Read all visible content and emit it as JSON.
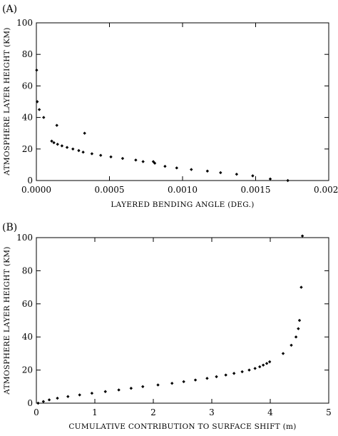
{
  "chart_data": [
    {
      "type": "scatter",
      "panel_label": "(A)",
      "title": "",
      "xlabel": "LAYERED BENDING ANGLE (DEG.)",
      "ylabel": "ATMOSPHERE LAYER HEIGHT (KM)",
      "xlim": [
        0,
        0.002
      ],
      "ylim": [
        0,
        100
      ],
      "xticks": [
        0,
        0.0005,
        0.001,
        0.0015,
        0.002
      ],
      "xtick_labels": [
        "0.0000",
        "0.0005",
        "0.0010",
        "0.0015",
        "0.0020"
      ],
      "yticks": [
        0,
        20,
        40,
        60,
        80,
        100
      ],
      "ytick_labels": [
        "0",
        "20",
        "40",
        "60",
        "80",
        "100"
      ],
      "grid": false,
      "marker": "diamond",
      "points": [
        {
          "x": 2e-06,
          "y": 70
        },
        {
          "x": 6e-06,
          "y": 50
        },
        {
          "x": 2e-05,
          "y": 45
        },
        {
          "x": 5e-05,
          "y": 40
        },
        {
          "x": 0.000105,
          "y": 25
        },
        {
          "x": 0.00012,
          "y": 24
        },
        {
          "x": 0.00014,
          "y": 35
        },
        {
          "x": 0.000145,
          "y": 23
        },
        {
          "x": 0.000175,
          "y": 22
        },
        {
          "x": 0.00021,
          "y": 21
        },
        {
          "x": 0.00025,
          "y": 20
        },
        {
          "x": 0.00029,
          "y": 19
        },
        {
          "x": 0.00032,
          "y": 18
        },
        {
          "x": 0.00033,
          "y": 30
        },
        {
          "x": 0.00038,
          "y": 17
        },
        {
          "x": 0.00044,
          "y": 16
        },
        {
          "x": 0.00051,
          "y": 15
        },
        {
          "x": 0.00059,
          "y": 14
        },
        {
          "x": 0.00068,
          "y": 13
        },
        {
          "x": 0.00073,
          "y": 12
        },
        {
          "x": 0.0008,
          "y": 12
        },
        {
          "x": 0.00081,
          "y": 11
        },
        {
          "x": 0.00088,
          "y": 9
        },
        {
          "x": 0.00096,
          "y": 8
        },
        {
          "x": 0.00106,
          "y": 7
        },
        {
          "x": 0.00117,
          "y": 6
        },
        {
          "x": 0.00126,
          "y": 5
        },
        {
          "x": 0.00137,
          "y": 4
        },
        {
          "x": 0.00148,
          "y": 3
        },
        {
          "x": 0.0016,
          "y": 1
        },
        {
          "x": 0.00172,
          "y": 0
        }
      ]
    },
    {
      "type": "scatter",
      "panel_label": "(B)",
      "title": "",
      "xlabel": "CUMULATIVE CONTRIBUTION TO SURFACE SHIFT (m)",
      "ylabel": "ATMOSPHERE LAYER HEIGHT (KM)",
      "xlim": [
        0,
        5
      ],
      "ylim": [
        0,
        100
      ],
      "xticks": [
        0,
        1,
        2,
        3,
        4,
        5
      ],
      "xtick_labels": [
        "0",
        "1",
        "2",
        "3",
        "4",
        "5"
      ],
      "yticks": [
        0,
        20,
        40,
        60,
        80,
        100
      ],
      "ytick_labels": [
        "0",
        "20",
        "40",
        "60",
        "80",
        "100"
      ],
      "grid": false,
      "marker": "diamond",
      "points": [
        {
          "x": 0.03,
          "y": 0
        },
        {
          "x": 0.12,
          "y": 1
        },
        {
          "x": 0.22,
          "y": 2
        },
        {
          "x": 0.36,
          "y": 3
        },
        {
          "x": 0.54,
          "y": 4
        },
        {
          "x": 0.74,
          "y": 5
        },
        {
          "x": 0.95,
          "y": 6
        },
        {
          "x": 1.18,
          "y": 7
        },
        {
          "x": 1.41,
          "y": 8
        },
        {
          "x": 1.62,
          "y": 9
        },
        {
          "x": 1.82,
          "y": 10
        },
        {
          "x": 2.08,
          "y": 11
        },
        {
          "x": 2.32,
          "y": 12
        },
        {
          "x": 2.52,
          "y": 13
        },
        {
          "x": 2.72,
          "y": 14
        },
        {
          "x": 2.92,
          "y": 15
        },
        {
          "x": 3.08,
          "y": 16
        },
        {
          "x": 3.24,
          "y": 17
        },
        {
          "x": 3.38,
          "y": 18
        },
        {
          "x": 3.52,
          "y": 19
        },
        {
          "x": 3.64,
          "y": 20
        },
        {
          "x": 3.74,
          "y": 21
        },
        {
          "x": 3.82,
          "y": 22
        },
        {
          "x": 3.88,
          "y": 23
        },
        {
          "x": 3.94,
          "y": 24
        },
        {
          "x": 3.99,
          "y": 25
        },
        {
          "x": 4.22,
          "y": 30
        },
        {
          "x": 4.36,
          "y": 35
        },
        {
          "x": 4.44,
          "y": 40
        },
        {
          "x": 4.48,
          "y": 45
        },
        {
          "x": 4.5,
          "y": 50
        },
        {
          "x": 4.53,
          "y": 70
        },
        {
          "x": 4.55,
          "y": 101
        }
      ]
    }
  ]
}
